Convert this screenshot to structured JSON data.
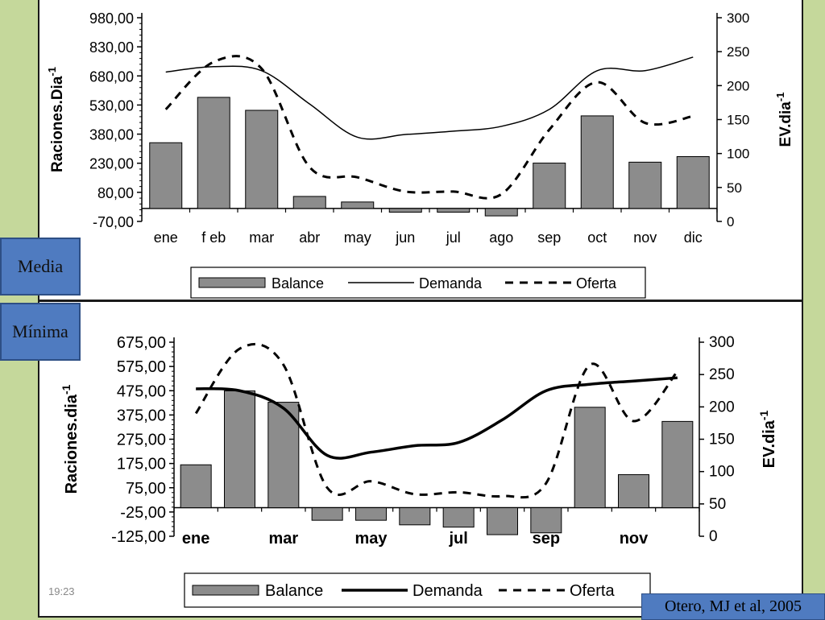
{
  "tags": {
    "media": "Media",
    "minima": "Mínima"
  },
  "slide_time": "19:23",
  "citation": "Otero, MJ et al, 2005",
  "chart_data": [
    {
      "type": "bar",
      "name": "media",
      "ylabel": "Raciones.Dia",
      "ylabel_sup": "-1",
      "y2label": "EV.dia",
      "y2label_sup": "-1",
      "ylim": [
        -70,
        1030
      ],
      "y_ticks": [
        "980,00",
        "830,00",
        "680,00",
        "530,00",
        "380,00",
        "230,00",
        "80,00",
        "-70,00"
      ],
      "y2lim": [
        0,
        300
      ],
      "y2_ticks": [
        "300",
        "250",
        "200",
        "150",
        "100",
        "50",
        "0"
      ],
      "categories": [
        "ene",
        "f eb",
        "mar",
        "abr",
        "may",
        "jun",
        "jul",
        "ago",
        "sep",
        "oct",
        "nov",
        "dic"
      ],
      "legend": [
        "Balance",
        "Demanda",
        "Oferta"
      ],
      "series": [
        {
          "name": "Balance",
          "type": "bar",
          "axis": "left",
          "values": [
            355,
            600,
            530,
            65,
            35,
            -20,
            -20,
            -40,
            245,
            500,
            250,
            280
          ]
        },
        {
          "name": "Demanda",
          "type": "line",
          "axis": "right",
          "values": [
            220,
            228,
            222,
            173,
            124,
            128,
            133,
            140,
            165,
            222,
            222,
            242
          ]
        },
        {
          "name": "Oferta",
          "type": "dashed",
          "axis": "right",
          "values": [
            165,
            235,
            225,
            80,
            65,
            44,
            44,
            40,
            135,
            205,
            145,
            155
          ]
        }
      ]
    },
    {
      "type": "bar",
      "name": "minima",
      "ylabel": "Raciones.dia",
      "ylabel_sup": "-1",
      "y2label": "EV.dia",
      "y2label_sup": "-1",
      "ylim": [
        -125,
        725
      ],
      "y_ticks": [
        "675,00",
        "575,00",
        "475,00",
        "375,00",
        "275,00",
        "175,00",
        "75,00",
        "-25,00",
        "-125,00"
      ],
      "y2lim": [
        0,
        300
      ],
      "y2_ticks": [
        "300",
        "250",
        "200",
        "150",
        "100",
        "50",
        "0"
      ],
      "categories": [
        "ene",
        "",
        "mar",
        "",
        "may",
        "",
        "jul",
        "",
        "sep",
        "",
        "nov",
        ""
      ],
      "legend": [
        "Balance",
        "Demanda",
        "Oferta"
      ],
      "series": [
        {
          "name": "Balance",
          "type": "bar",
          "axis": "left",
          "values": [
            188,
            512,
            462,
            -55,
            -55,
            -75,
            -85,
            -118,
            -110,
            440,
            145,
            378
          ]
        },
        {
          "name": "Demanda",
          "type": "line",
          "axis": "right",
          "values": [
            228,
            225,
            198,
            125,
            130,
            140,
            145,
            180,
            225,
            235,
            240,
            245
          ]
        },
        {
          "name": "Oferta",
          "type": "dashed",
          "axis": "right",
          "values": [
            190,
            290,
            265,
            75,
            85,
            65,
            68,
            62,
            82,
            265,
            178,
            255
          ]
        }
      ]
    }
  ]
}
